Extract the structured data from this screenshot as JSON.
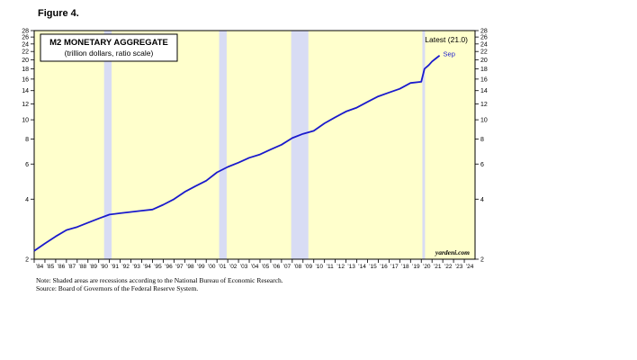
{
  "figure_label": "Figure 4.",
  "notes": [
    "Note: Shaded areas are recessions according to the National Bureau of Economic Research.",
    "Source: Board of Governors of the Federal Reserve System."
  ],
  "colors": {
    "background": "#ffffcc",
    "recession": "#d8dcf4",
    "line": "#1a1acc",
    "annotation": "#1a1acc"
  },
  "chart_data": {
    "type": "line",
    "title": "M2 MONETARY AGGREGATE",
    "subtitle": "(trillion dollars, ratio scale)",
    "latest_label": "Latest (21.0)",
    "end_label": "Sep",
    "watermark": "yardeni.com",
    "y_scale": "log",
    "ylim": [
      2,
      28
    ],
    "xlim": [
      1984,
      2025
    ],
    "y_ticks": [
      2,
      4,
      6,
      8,
      10,
      12,
      14,
      16,
      18,
      20,
      22,
      24,
      26,
      28
    ],
    "x_tick_labels": [
      "84",
      "85",
      "86",
      "87",
      "88",
      "89",
      "90",
      "91",
      "92",
      "93",
      "94",
      "95",
      "96",
      "97",
      "98",
      "99",
      "00",
      "01",
      "02",
      "03",
      "04",
      "05",
      "06",
      "07",
      "08",
      "09",
      "10",
      "11",
      "12",
      "13",
      "14",
      "15",
      "16",
      "17",
      "18",
      "19",
      "20",
      "21",
      "22",
      "23",
      "24"
    ],
    "recessions": [
      [
        1990.5,
        1991.2
      ],
      [
        2001.2,
        2001.9
      ],
      [
        2007.9,
        2009.5
      ],
      [
        2020.1,
        2020.35
      ]
    ],
    "series": [
      {
        "x": [
          1984.0,
          1985.0,
          1986.0,
          1987.0,
          1988.0,
          1989.0,
          1990.0,
          1991.0,
          1992.0,
          1993.0,
          1994.0,
          1995.0,
          1996.0,
          1997.0,
          1998.0,
          1999.0,
          2000.0,
          2001.0,
          2002.0,
          2003.0,
          2004.0,
          2005.0,
          2006.0,
          2007.0,
          2008.0,
          2009.0,
          2010.0,
          2011.0,
          2012.0,
          2013.0,
          2014.0,
          2015.0,
          2016.0,
          2017.0,
          2018.0,
          2019.0,
          2020.0,
          2020.3,
          2020.7,
          2021.0,
          2021.4,
          2021.7
        ],
        "values": [
          2.2,
          2.4,
          2.6,
          2.8,
          2.9,
          3.05,
          3.2,
          3.35,
          3.4,
          3.45,
          3.5,
          3.55,
          3.75,
          4.0,
          4.35,
          4.65,
          4.95,
          5.45,
          5.8,
          6.1,
          6.45,
          6.7,
          7.1,
          7.5,
          8.1,
          8.5,
          8.8,
          9.6,
          10.3,
          11.0,
          11.5,
          12.3,
          13.1,
          13.7,
          14.3,
          15.3,
          15.5,
          18.0,
          18.8,
          19.6,
          20.4,
          21.0
        ]
      }
    ]
  }
}
